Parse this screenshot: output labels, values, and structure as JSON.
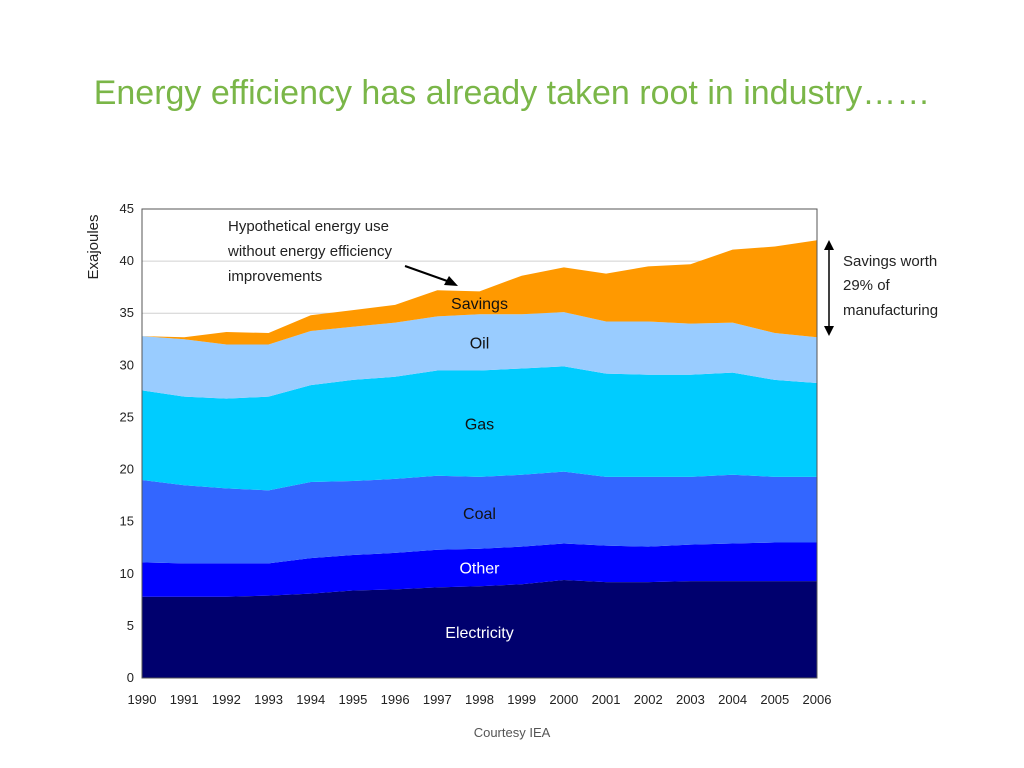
{
  "slide": {
    "title": "Energy efficiency has already taken root in industry……",
    "credit": "Courtesy IEA"
  },
  "chart_data": {
    "type": "area",
    "stacked": true,
    "title": "",
    "xlabel": "",
    "ylabel": "Exajoules",
    "x": [
      "1990",
      "1991",
      "1992",
      "1993",
      "1994",
      "1995",
      "1996",
      "1997",
      "1998",
      "1999",
      "2000",
      "2001",
      "2002",
      "2003",
      "2004",
      "2005",
      "2006"
    ],
    "ylim": [
      0,
      45
    ],
    "yticks": [
      "0",
      "5",
      "10",
      "15",
      "20",
      "25",
      "30",
      "35",
      "40",
      "45"
    ],
    "grid": true,
    "series": [
      {
        "name": "Electricity",
        "color": "#00006e",
        "label_color": "#ffffff",
        "values": [
          7.8,
          7.8,
          7.8,
          7.9,
          8.1,
          8.4,
          8.5,
          8.7,
          8.8,
          9.0,
          9.4,
          9.2,
          9.2,
          9.3,
          9.3,
          9.3,
          9.3
        ]
      },
      {
        "name": "Other",
        "color": "#0000ff",
        "label_color": "#ffffff",
        "values": [
          3.3,
          3.2,
          3.2,
          3.1,
          3.4,
          3.4,
          3.5,
          3.6,
          3.6,
          3.6,
          3.5,
          3.5,
          3.4,
          3.5,
          3.6,
          3.7,
          3.7
        ]
      },
      {
        "name": "Coal",
        "color": "#3366ff",
        "label_color": "#111111",
        "values": [
          7.9,
          7.5,
          7.2,
          7.0,
          7.3,
          7.1,
          7.1,
          7.1,
          6.9,
          6.9,
          6.9,
          6.6,
          6.7,
          6.5,
          6.6,
          6.3,
          6.3
        ]
      },
      {
        "name": "Gas",
        "color": "#00ccff",
        "label_color": "#111111",
        "values": [
          8.6,
          8.5,
          8.6,
          9.0,
          9.3,
          9.7,
          9.8,
          10.1,
          10.2,
          10.2,
          10.1,
          9.9,
          9.8,
          9.8,
          9.8,
          9.3,
          9.0
        ]
      },
      {
        "name": "Oil",
        "color": "#99ccff",
        "label_color": "#111111",
        "values": [
          5.2,
          5.5,
          5.2,
          5.0,
          5.2,
          5.1,
          5.2,
          5.2,
          5.4,
          5.2,
          5.2,
          5.0,
          5.1,
          4.9,
          4.8,
          4.5,
          4.4
        ]
      },
      {
        "name": "Savings",
        "color": "#ff9900",
        "label_color": "#111111",
        "values": [
          0.0,
          0.2,
          1.2,
          1.1,
          1.5,
          1.6,
          1.7,
          2.5,
          2.2,
          3.7,
          4.3,
          4.6,
          5.3,
          5.7,
          7.0,
          8.3,
          9.3
        ]
      }
    ],
    "annotations": {
      "hypothetical": [
        "Hypothetical energy use",
        "without energy efficiency",
        "improvements"
      ],
      "savings_note": [
        "Savings worth",
        "29% of",
        "manufacturing"
      ]
    }
  }
}
